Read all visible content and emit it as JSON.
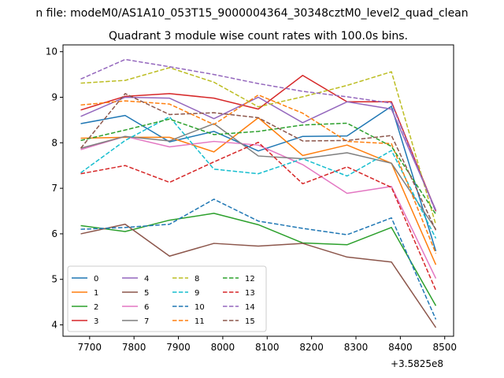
{
  "chart_data": {
    "type": "line",
    "suptitle": "n file: modeM0/AS1A10_053T15_9000004364_30348cztM0_level2_quad_clean",
    "title": "Quadrant 3 module wise count rates with 100.0s bins.",
    "xlabel": "",
    "ylabel": "",
    "x_offset_label": "+3.5825e8",
    "x": [
      7680,
      7780,
      7880,
      7980,
      8080,
      8180,
      8280,
      8380,
      8480
    ],
    "xlim": [
      7640,
      8520
    ],
    "ylim": [
      3.75,
      10.15
    ],
    "x_ticks": [
      7700,
      7800,
      7900,
      8000,
      8100,
      8200,
      8300,
      8400,
      8500
    ],
    "y_ticks": [
      4,
      5,
      6,
      7,
      8,
      9,
      10
    ],
    "grid": false,
    "legend_position": "lower-left",
    "legend_columns": 4,
    "series": [
      {
        "name": "0",
        "color": "#1f77b4",
        "dash": "solid",
        "values": [
          8.42,
          8.6,
          8.02,
          8.25,
          7.82,
          8.14,
          8.15,
          8.8,
          5.62
        ]
      },
      {
        "name": "1",
        "color": "#ff7f0e",
        "dash": "solid",
        "values": [
          8.1,
          8.12,
          8.12,
          7.8,
          8.55,
          7.72,
          7.95,
          7.55,
          5.32
        ]
      },
      {
        "name": "2",
        "color": "#2ca02c",
        "dash": "solid",
        "values": [
          6.18,
          6.05,
          6.3,
          6.45,
          6.2,
          5.8,
          5.76,
          6.14,
          4.42
        ]
      },
      {
        "name": "3",
        "color": "#d62728",
        "dash": "solid",
        "values": [
          8.72,
          9.02,
          9.08,
          8.98,
          8.74,
          9.48,
          8.9,
          8.9,
          6.5
        ]
      },
      {
        "name": "4",
        "color": "#9467bd",
        "dash": "solid",
        "values": [
          8.58,
          9.0,
          8.98,
          8.53,
          9.0,
          8.44,
          8.9,
          8.74,
          6.52
        ]
      },
      {
        "name": "5",
        "color": "#8c564b",
        "dash": "solid",
        "values": [
          6.0,
          6.21,
          5.51,
          5.79,
          5.73,
          5.79,
          5.49,
          5.38,
          3.94
        ]
      },
      {
        "name": "6",
        "color": "#e377c2",
        "dash": "solid",
        "values": [
          7.85,
          8.14,
          7.91,
          8.03,
          7.95,
          7.52,
          6.89,
          7.04,
          5.02
        ]
      },
      {
        "name": "7",
        "color": "#7f7f7f",
        "dash": "solid",
        "values": [
          7.88,
          8.14,
          8.04,
          8.42,
          7.71,
          7.65,
          7.78,
          7.55,
          6.1
        ]
      },
      {
        "name": "8",
        "color": "#bcbd22",
        "dash": "dashed",
        "values": [
          9.31,
          9.37,
          9.65,
          9.33,
          8.79,
          9.01,
          9.26,
          9.56,
          6.2
        ]
      },
      {
        "name": "9",
        "color": "#17becf",
        "dash": "dashed",
        "values": [
          7.34,
          8.05,
          8.57,
          7.42,
          7.32,
          7.65,
          7.27,
          7.83,
          5.9
        ]
      },
      {
        "name": "10",
        "color": "#1f77b4",
        "dash": "dashed",
        "values": [
          6.1,
          6.14,
          6.21,
          6.76,
          6.28,
          6.12,
          5.98,
          6.35,
          4.12
        ]
      },
      {
        "name": "11",
        "color": "#ff7f0e",
        "dash": "dashed",
        "values": [
          8.83,
          8.92,
          8.85,
          8.4,
          9.05,
          8.65,
          8.03,
          7.98,
          5.57
        ]
      },
      {
        "name": "12",
        "color": "#2ca02c",
        "dash": "dashed",
        "values": [
          8.05,
          8.28,
          8.52,
          8.18,
          8.25,
          8.39,
          8.43,
          7.92,
          6.43
        ]
      },
      {
        "name": "13",
        "color": "#d62728",
        "dash": "dashed",
        "values": [
          7.32,
          7.5,
          7.13,
          7.58,
          8.01,
          7.1,
          7.47,
          7.02,
          4.76
        ]
      },
      {
        "name": "14",
        "color": "#9467bd",
        "dash": "dashed",
        "values": [
          9.4,
          9.83,
          9.67,
          9.5,
          9.3,
          9.13,
          9.01,
          8.87,
          6.48
        ]
      },
      {
        "name": "15",
        "color": "#8c564b",
        "dash": "dashed",
        "values": [
          7.88,
          9.08,
          8.62,
          8.66,
          8.55,
          8.04,
          8.05,
          8.16,
          6.08
        ]
      }
    ]
  }
}
